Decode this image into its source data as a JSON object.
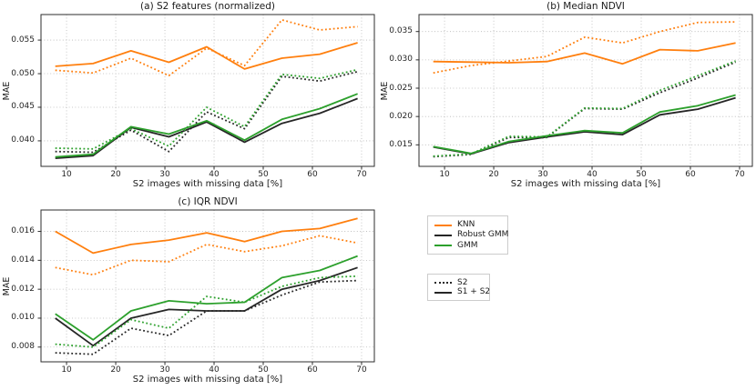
{
  "figure": {
    "background": "#ffffff"
  },
  "colors": {
    "knn": "#ff7f0e",
    "robust_gmm": "#262626",
    "gmm": "#2ca02c",
    "grid": "#b0b0b0",
    "spine": "#2e2e2e",
    "text": "#262626"
  },
  "legend_models": {
    "items": [
      {
        "label": "KNN",
        "color": "#ff7f0e",
        "style": "solid"
      },
      {
        "label": "Robust GMM",
        "color": "#262626",
        "style": "solid"
      },
      {
        "label": "GMM",
        "color": "#2ca02c",
        "style": "solid"
      }
    ]
  },
  "legend_inputs": {
    "items": [
      {
        "label": "S2",
        "color": "#262626",
        "style": "dotted"
      },
      {
        "label": "S1 + S2",
        "color": "#262626",
        "style": "solid"
      }
    ]
  },
  "chart_data": [
    {
      "type": "line",
      "title": "(a) S2 features (normalized)",
      "xlabel": "S2 images with missing data [%]",
      "ylabel": "MAE",
      "grid": true,
      "legend_position": "outside-right",
      "x": [
        7.7,
        15.4,
        23.1,
        30.8,
        38.5,
        46.2,
        53.8,
        61.5,
        69.2
      ],
      "xticks": [
        10,
        20,
        30,
        40,
        50,
        60,
        70
      ],
      "yticks": [
        0.04,
        0.045,
        0.05,
        0.055
      ],
      "ytick_decimals": 3,
      "xlim": [
        4.8,
        72.6
      ],
      "ylim": [
        0.0362,
        0.0588
      ],
      "series": [
        {
          "name": "KNN (S2)",
          "model": "KNN",
          "input": "S2",
          "color": "#ff7f0e",
          "style": "dotted",
          "values": [
            0.0505,
            0.0501,
            0.0523,
            0.0497,
            0.0538,
            0.0512,
            0.058,
            0.0565,
            0.057
          ]
        },
        {
          "name": "KNN (S1 + S2)",
          "model": "KNN",
          "input": "S1 + S2",
          "color": "#ff7f0e",
          "style": "solid",
          "values": [
            0.0511,
            0.0515,
            0.0534,
            0.0517,
            0.054,
            0.0507,
            0.0523,
            0.0529,
            0.0546
          ]
        },
        {
          "name": "Robust GMM (S2)",
          "model": "Robust GMM",
          "input": "S2",
          "color": "#262626",
          "style": "dotted",
          "values": [
            0.0384,
            0.0383,
            0.0416,
            0.0384,
            0.0443,
            0.0418,
            0.0496,
            0.0489,
            0.0503
          ]
        },
        {
          "name": "Robust GMM (S1 + S2)",
          "model": "Robust GMM",
          "input": "S1 + S2",
          "color": "#262626",
          "style": "solid",
          "values": [
            0.0374,
            0.0378,
            0.042,
            0.0406,
            0.0428,
            0.0398,
            0.0426,
            0.0441,
            0.0463
          ]
        },
        {
          "name": "GMM (S2)",
          "model": "GMM",
          "input": "S2",
          "color": "#2ca02c",
          "style": "dotted",
          "values": [
            0.0389,
            0.0388,
            0.0418,
            0.0392,
            0.045,
            0.0421,
            0.0499,
            0.0493,
            0.0506
          ]
        },
        {
          "name": "GMM (S1 + S2)",
          "model": "GMM",
          "input": "S1 + S2",
          "color": "#2ca02c",
          "style": "solid",
          "values": [
            0.0376,
            0.038,
            0.0421,
            0.041,
            0.043,
            0.0401,
            0.0432,
            0.0448,
            0.047
          ]
        }
      ]
    },
    {
      "type": "line",
      "title": "(b) Median NDVI",
      "xlabel": "S2 images with missing data [%]",
      "ylabel": "MAE",
      "grid": true,
      "x": [
        7.7,
        15.4,
        23.1,
        30.8,
        38.5,
        46.2,
        53.8,
        61.5,
        69.2
      ],
      "xticks": [
        10,
        20,
        30,
        40,
        50,
        60,
        70
      ],
      "yticks": [
        0.015,
        0.02,
        0.025,
        0.03,
        0.035
      ],
      "ytick_decimals": 3,
      "xlim": [
        4.8,
        72.6
      ],
      "ylim": [
        0.0112,
        0.038
      ],
      "series": [
        {
          "name": "KNN (S2)",
          "model": "KNN",
          "input": "S2",
          "color": "#ff7f0e",
          "style": "dotted",
          "values": [
            0.0277,
            0.029,
            0.0298,
            0.0306,
            0.034,
            0.033,
            0.035,
            0.0366,
            0.0367
          ]
        },
        {
          "name": "KNN (S1 + S2)",
          "model": "KNN",
          "input": "S1 + S2",
          "color": "#ff7f0e",
          "style": "solid",
          "values": [
            0.0297,
            0.0296,
            0.0295,
            0.0297,
            0.0312,
            0.0293,
            0.0318,
            0.0316,
            0.033
          ]
        },
        {
          "name": "Robust GMM (S2)",
          "model": "Robust GMM",
          "input": "S2",
          "color": "#262626",
          "style": "dotted",
          "values": [
            0.0129,
            0.0133,
            0.0163,
            0.0163,
            0.0214,
            0.0213,
            0.0242,
            0.0268,
            0.0296
          ]
        },
        {
          "name": "Robust GMM (S1 + S2)",
          "model": "Robust GMM",
          "input": "S1 + S2",
          "color": "#262626",
          "style": "solid",
          "values": [
            0.0146,
            0.0134,
            0.0154,
            0.0164,
            0.0173,
            0.0168,
            0.0203,
            0.0213,
            0.0233
          ]
        },
        {
          "name": "GMM (S2)",
          "model": "GMM",
          "input": "S2",
          "color": "#2ca02c",
          "style": "dotted",
          "values": [
            0.013,
            0.0134,
            0.0165,
            0.0164,
            0.0215,
            0.0214,
            0.0246,
            0.0272,
            0.0298
          ]
        },
        {
          "name": "GMM (S1 + S2)",
          "model": "GMM",
          "input": "S1 + S2",
          "color": "#2ca02c",
          "style": "solid",
          "values": [
            0.0147,
            0.0135,
            0.0156,
            0.0166,
            0.0175,
            0.0171,
            0.0208,
            0.0219,
            0.0238
          ]
        }
      ]
    },
    {
      "type": "line",
      "title": "(c) IQR NDVI",
      "xlabel": "S2 images with missing data [%]",
      "ylabel": "MAE",
      "grid": true,
      "x": [
        7.7,
        15.4,
        23.1,
        30.8,
        38.5,
        46.2,
        53.8,
        61.5,
        69.2
      ],
      "xticks": [
        10,
        20,
        30,
        40,
        50,
        60,
        70
      ],
      "yticks": [
        0.008,
        0.01,
        0.012,
        0.014,
        0.016
      ],
      "ytick_decimals": 3,
      "xlim": [
        4.8,
        72.6
      ],
      "ylim": [
        0.00698,
        0.01748
      ],
      "series": [
        {
          "name": "KNN (S2)",
          "model": "KNN",
          "input": "S2",
          "color": "#ff7f0e",
          "style": "dotted",
          "values": [
            0.0135,
            0.013,
            0.014,
            0.0139,
            0.0151,
            0.0146,
            0.015,
            0.0157,
            0.0152
          ]
        },
        {
          "name": "KNN (S1 + S2)",
          "model": "KNN",
          "input": "S1 + S2",
          "color": "#ff7f0e",
          "style": "solid",
          "values": [
            0.016,
            0.0145,
            0.0151,
            0.0154,
            0.0159,
            0.0153,
            0.016,
            0.0162,
            0.0169
          ]
        },
        {
          "name": "Robust GMM (S2)",
          "model": "Robust GMM",
          "input": "S2",
          "color": "#262626",
          "style": "dotted",
          "values": [
            0.0076,
            0.0075,
            0.0093,
            0.0088,
            0.0105,
            0.0105,
            0.0116,
            0.0125,
            0.0126
          ]
        },
        {
          "name": "Robust GMM (S1 + S2)",
          "model": "Robust GMM",
          "input": "S1 + S2",
          "color": "#262626",
          "style": "solid",
          "values": [
            0.01,
            0.0081,
            0.01,
            0.0106,
            0.0105,
            0.0105,
            0.012,
            0.0126,
            0.0135
          ]
        },
        {
          "name": "GMM (S2)",
          "model": "GMM",
          "input": "S2",
          "color": "#2ca02c",
          "style": "dotted",
          "values": [
            0.0082,
            0.008,
            0.0099,
            0.0093,
            0.0115,
            0.0111,
            0.0122,
            0.0128,
            0.0129
          ]
        },
        {
          "name": "GMM (S1 + S2)",
          "model": "GMM",
          "input": "S1 + S2",
          "color": "#2ca02c",
          "style": "solid",
          "values": [
            0.0103,
            0.0085,
            0.0105,
            0.0112,
            0.011,
            0.0111,
            0.0128,
            0.0133,
            0.0143
          ]
        }
      ]
    }
  ]
}
